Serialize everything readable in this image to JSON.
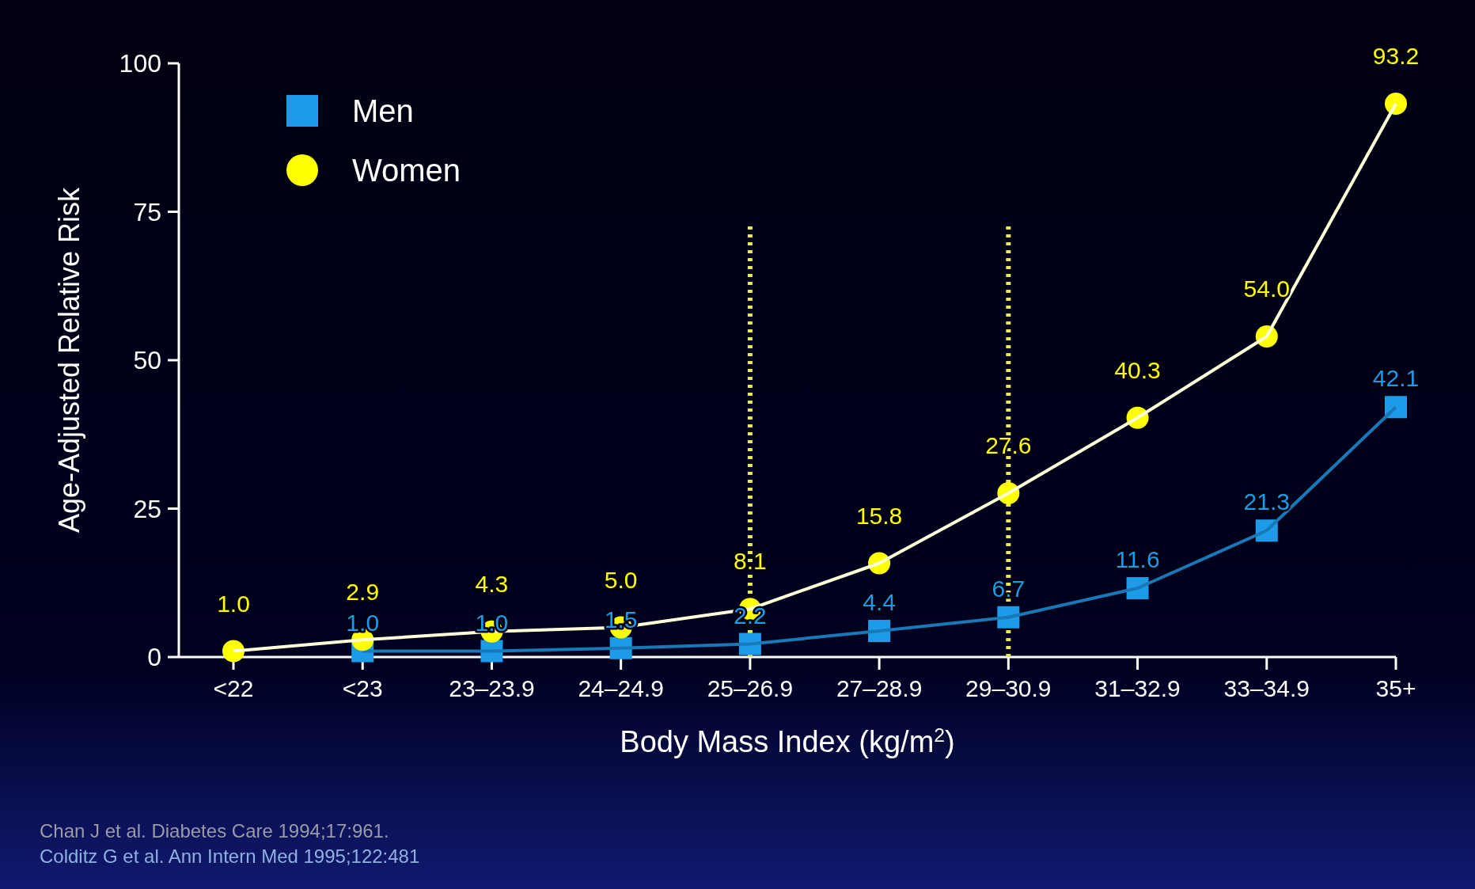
{
  "chart_data": {
    "type": "line",
    "ylabel": "Age-Adjusted Relative Risk",
    "xlabel": "Body Mass Index (kg/m$^{2}$)",
    "categories": [
      "<22",
      "<23",
      "23–23.9",
      "24–24.9",
      "25–26.9",
      "27–28.9",
      "29–30.9",
      "31–32.9",
      "33–34.9",
      "35+"
    ],
    "series": [
      {
        "name": "Men",
        "color": "#1e9be8",
        "marker": "square",
        "values": [
          null,
          1.0,
          1.0,
          1.5,
          2.2,
          4.4,
          6.7,
          11.6,
          21.3,
          42.1
        ],
        "value_labels": [
          null,
          "1.0",
          "1.0",
          "1.5",
          "2.2",
          "4.4",
          "6.7",
          "11.6",
          "21.3",
          "42.1"
        ]
      },
      {
        "name": "Women",
        "color": "#ffff00",
        "marker": "circle",
        "values": [
          1.0,
          2.9,
          4.3,
          5.0,
          8.1,
          15.8,
          27.6,
          40.3,
          54.0,
          93.2
        ],
        "value_labels": [
          "1.0",
          "2.9",
          "4.3",
          "5.0",
          "8.1",
          "15.8",
          "27.6",
          "40.3",
          "54.0",
          "93.2"
        ]
      }
    ],
    "ylim": [
      0,
      100
    ],
    "yticks": [
      0,
      25,
      50,
      75,
      100
    ],
    "legend": "top left",
    "grid": false,
    "ref_lines": [
      {
        "axis": "x",
        "value": "25–26.9",
        "color": "#e8e860",
        "line_style": "dotted"
      },
      {
        "axis": "x",
        "value": "29–30.9",
        "color": "#e8e860",
        "line_style": "dotted"
      }
    ],
    "annotations": [
      "Chan J et al. Diabetes Care 1994;17:961.",
      "Colditz G et al. Ann Intern Med 1995;122:481"
    ]
  }
}
